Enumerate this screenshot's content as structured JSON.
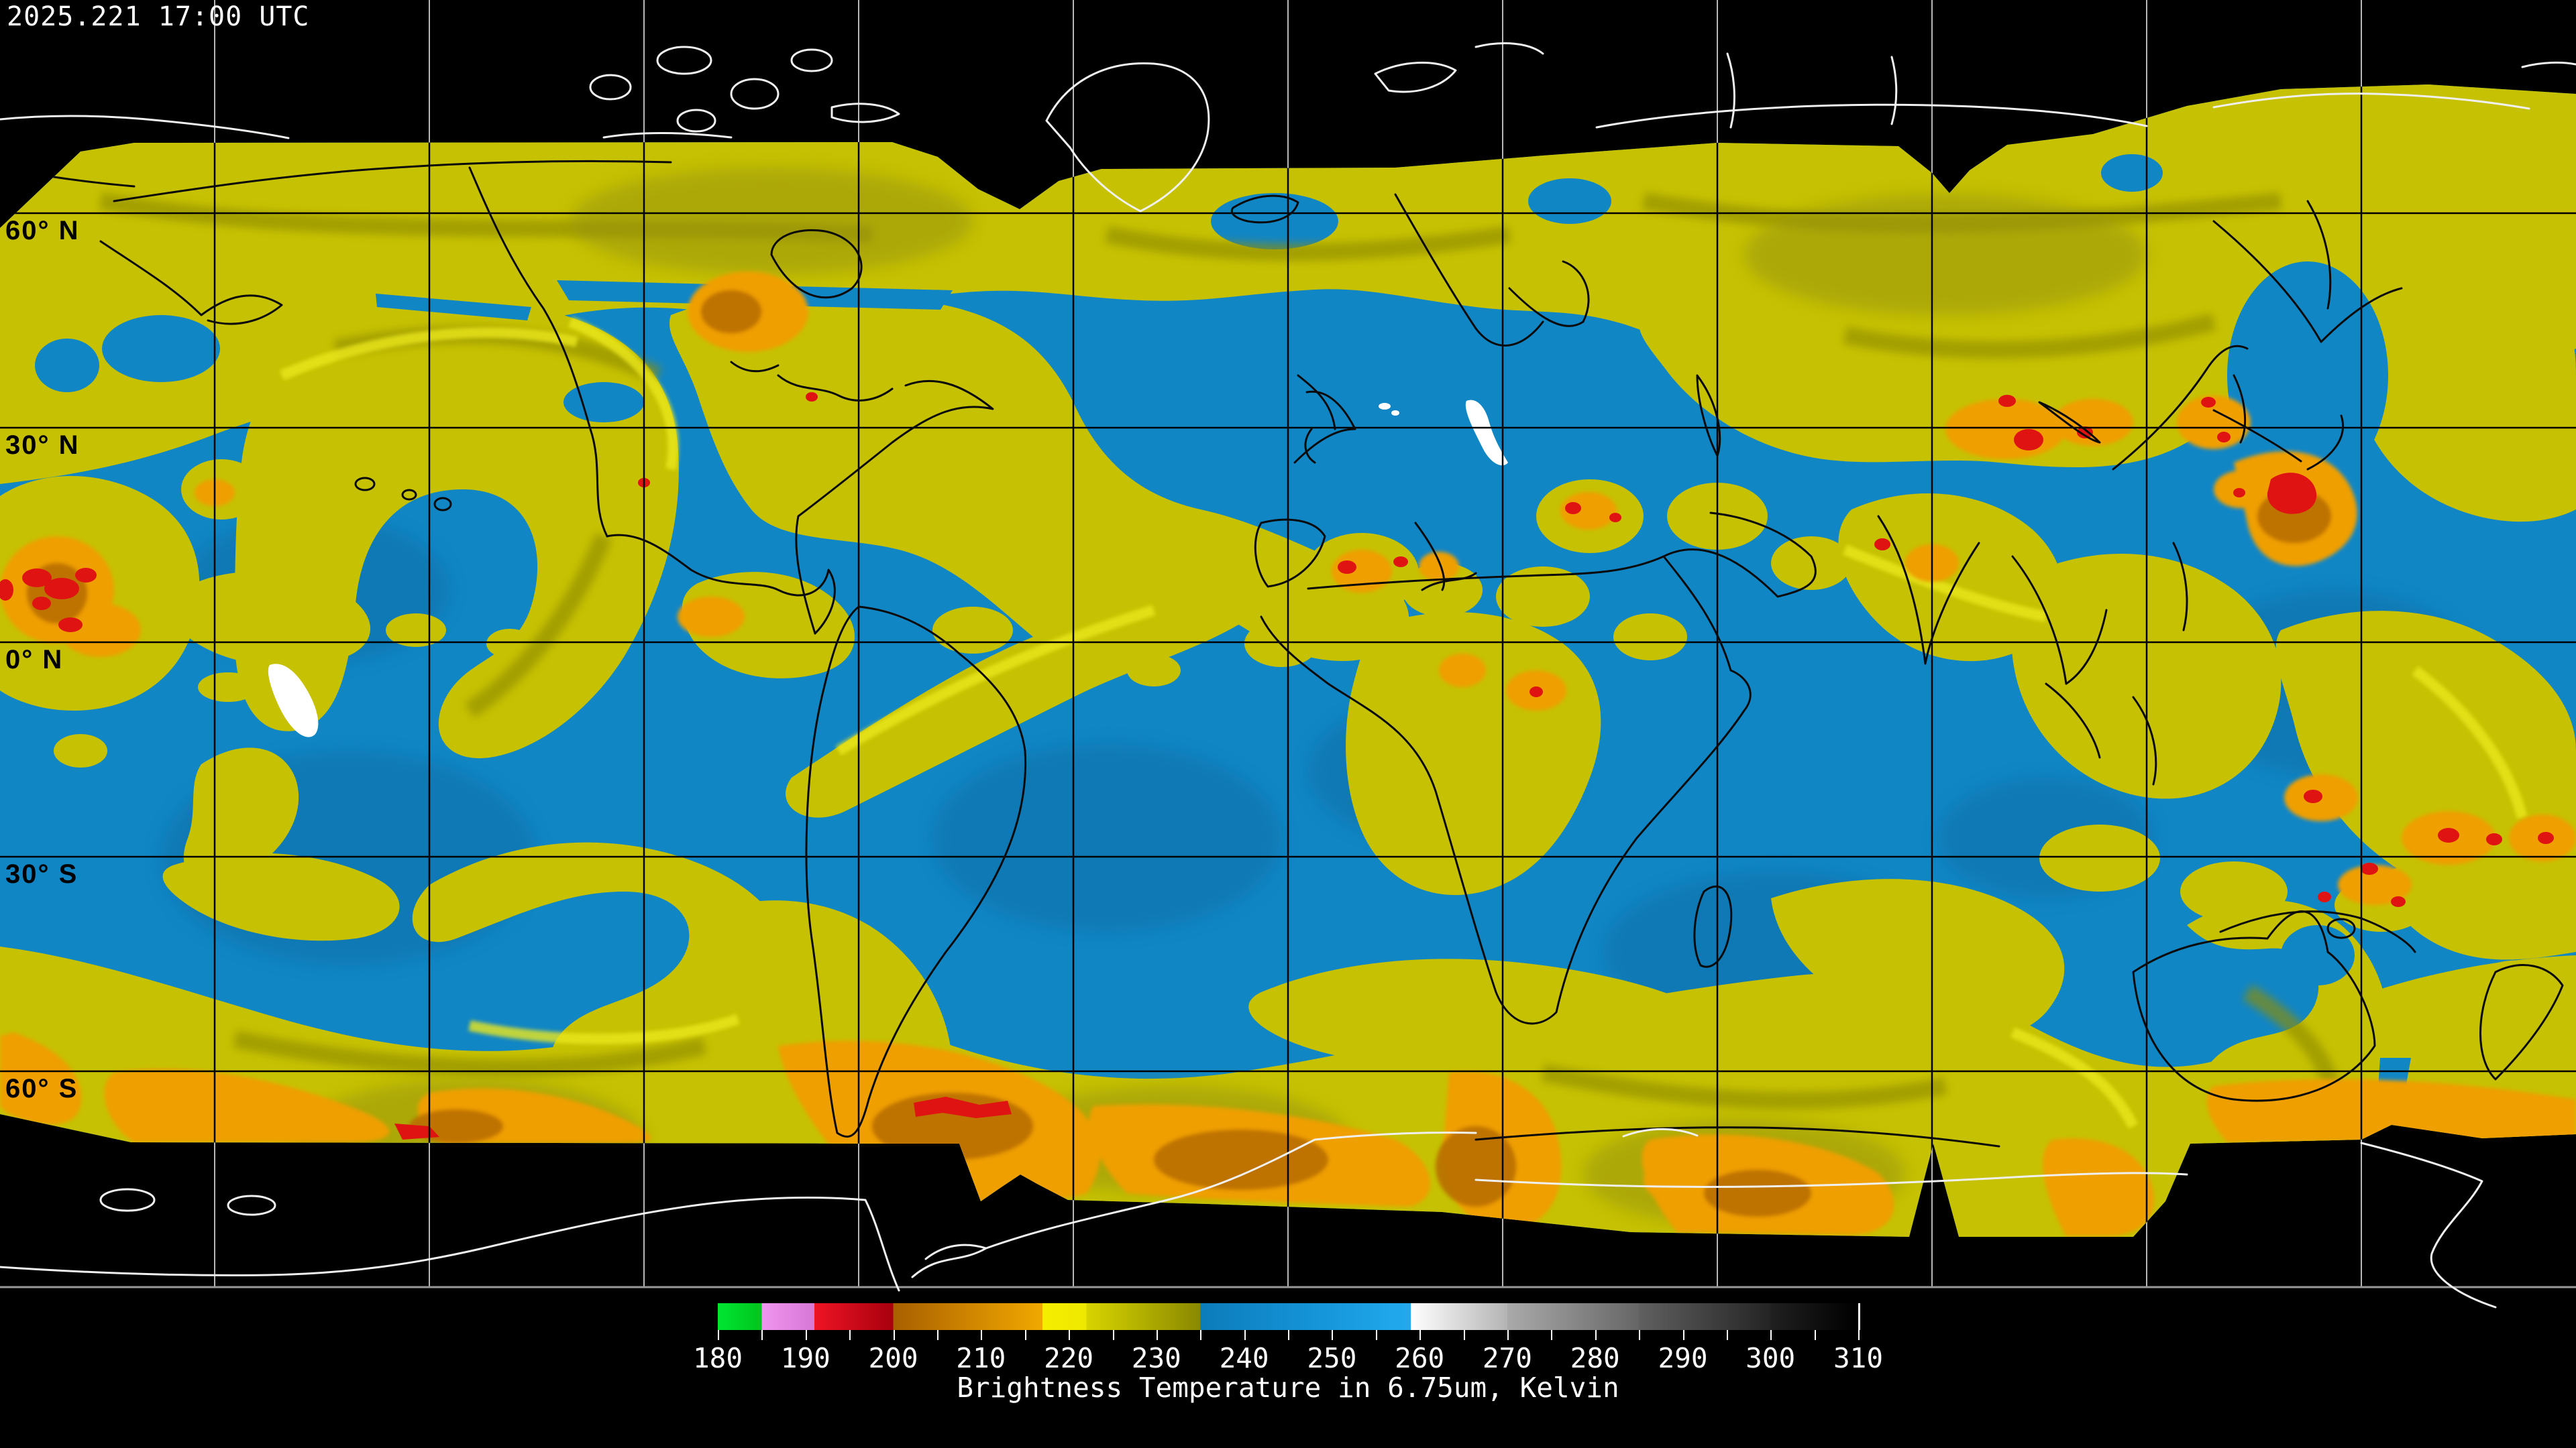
{
  "header": {
    "timestamp": "2025.221 17:00 UTC"
  },
  "map": {
    "latitude_labels": [
      "60° N",
      "30° N",
      "0° N",
      "30° S",
      "60° S"
    ],
    "colors": {
      "no_data_background": "#000000",
      "dry_upper_troposphere_blue": "#1186c5",
      "moist_cloud_yellow": "#c8c302",
      "cold_cloud_orange": "#ef9f00",
      "deep_convection_red": "#e01212",
      "coldest_green": "#00e632",
      "warm_surface_white": "#ffffff",
      "coastline_over_data": "#000000",
      "coastline_over_void": "#f2f2f2"
    }
  },
  "colorbar": {
    "caption": "Brightness Temperature in 6.75um, Kelvin",
    "min": 180,
    "max": 310,
    "tick_step_minor": 5,
    "tick_step_major": 10,
    "tick_labels": [
      "180",
      "190",
      "200",
      "210",
      "220",
      "230",
      "240",
      "250",
      "260",
      "270",
      "280",
      "290",
      "300",
      "310"
    ],
    "segments": [
      {
        "from": 180,
        "to": 185,
        "color_start": "#00e632",
        "color_end": "#00c41c"
      },
      {
        "from": 185,
        "to": 191,
        "color_start": "#f095f0",
        "color_end": "#d678d6"
      },
      {
        "from": 191,
        "to": 200,
        "color_start": "#ee1424",
        "color_end": "#a8000e"
      },
      {
        "from": 200,
        "to": 208,
        "color_start": "#a85f00",
        "color_end": "#cc8200"
      },
      {
        "from": 208,
        "to": 217,
        "color_start": "#cc8200",
        "color_end": "#f0a800"
      },
      {
        "from": 217,
        "to": 222,
        "color_start": "#f6ee00",
        "color_end": "#eee800"
      },
      {
        "from": 222,
        "to": 235,
        "color_start": "#d8d400",
        "color_end": "#8a8800"
      },
      {
        "from": 235,
        "to": 247,
        "color_start": "#0c7cba",
        "color_end": "#1492d6"
      },
      {
        "from": 247,
        "to": 259,
        "color_start": "#1492d6",
        "color_end": "#22aaee"
      },
      {
        "from": 259,
        "to": 270,
        "color_start": "#ffffff",
        "color_end": "#b4b4b4"
      },
      {
        "from": 270,
        "to": 285,
        "color_start": "#aaaaaa",
        "color_end": "#666666"
      },
      {
        "from": 285,
        "to": 300,
        "color_start": "#606060",
        "color_end": "#242424"
      },
      {
        "from": 300,
        "to": 310,
        "color_start": "#202020",
        "color_end": "#000000"
      }
    ]
  }
}
